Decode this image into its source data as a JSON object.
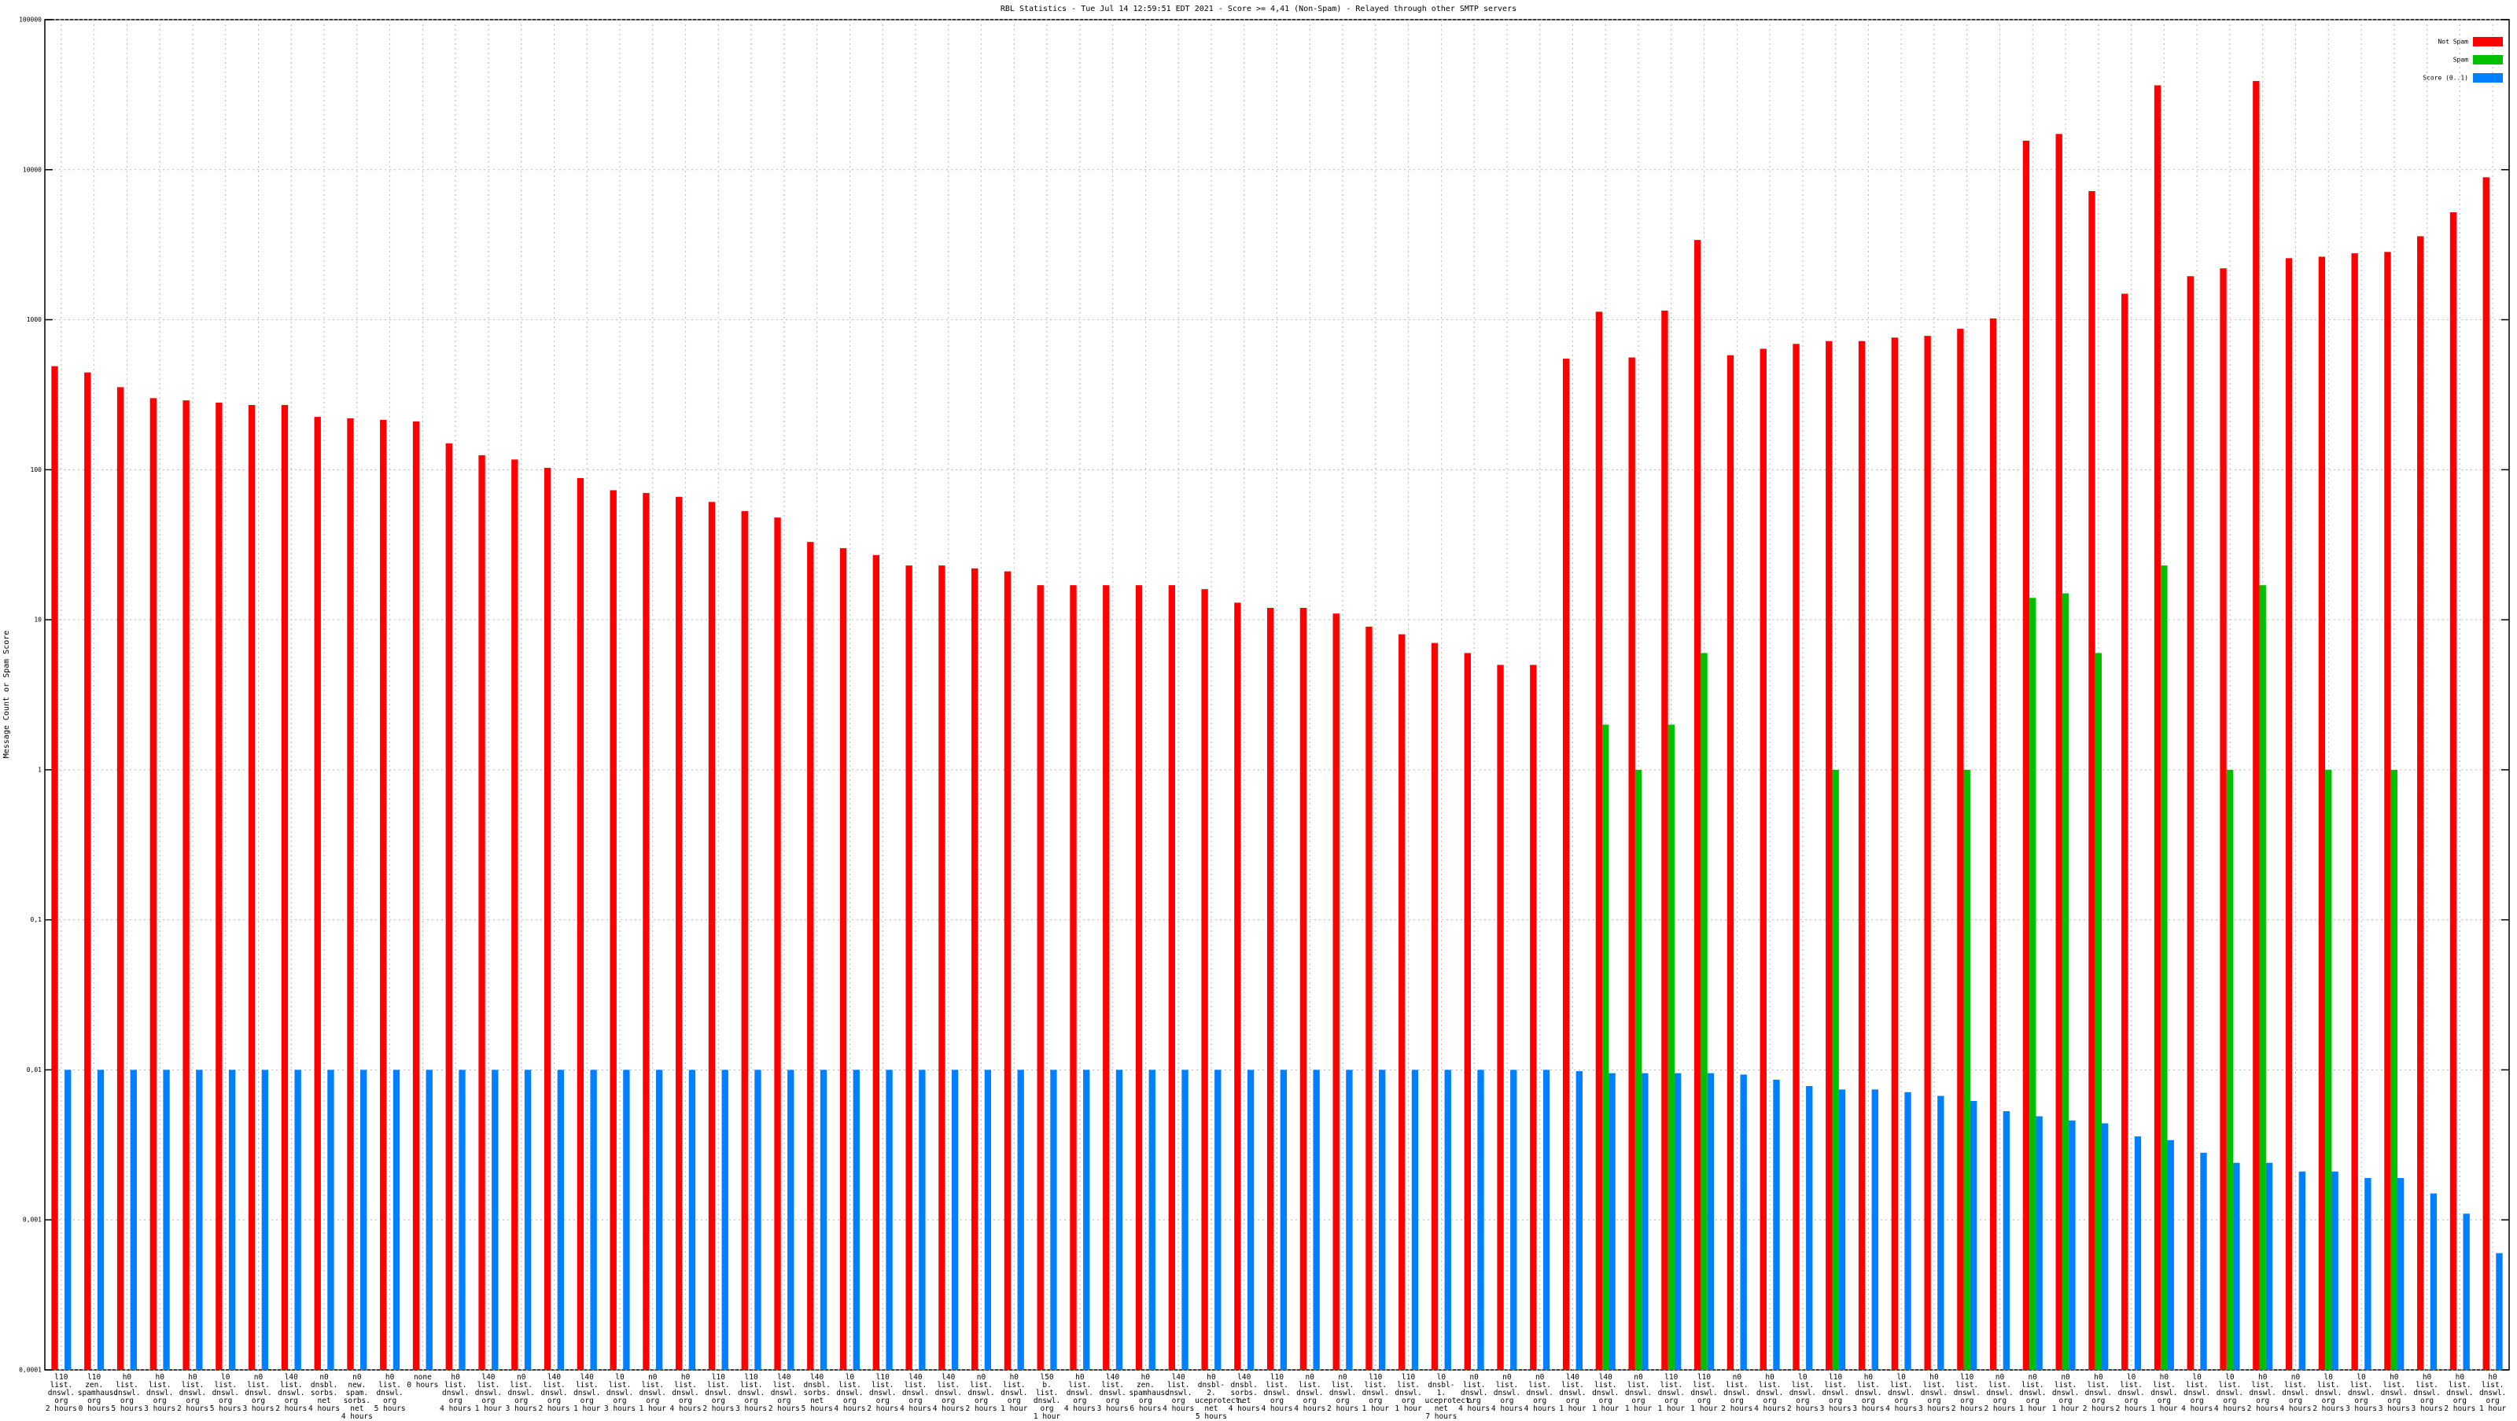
{
  "chart_data": {
    "type": "bar",
    "title": "RBL Statistics - Tue Jul 14 12:59:51 EDT 2021 - Score >= 4,41 (Non-Spam) - Relayed through other SMTP servers",
    "y_label": "Message Count or Spam Score",
    "log_scale": true,
    "grid": true,
    "legend": "upper right",
    "ylim": [
      0.0001,
      100000
    ],
    "yticks": [
      {
        "value": 0.0001,
        "label": "0,0001"
      },
      {
        "value": 0.001,
        "label": "0,001"
      },
      {
        "value": 0.01,
        "label": "0,01"
      },
      {
        "value": 0.1,
        "label": "0,1"
      },
      1,
      10,
      100,
      1000,
      10000,
      100000
    ],
    "categories": [
      "l10\nlist.\ndnswl.\norg\n2 hours",
      "l10\nzen.\nspamhaus.\norg\n0 hours",
      "h0\nlist.\ndnswl.\norg\n5 hours",
      "h0\nlist.\ndnswl.\norg\n3 hours",
      "h0\nlist.\ndnswl.\norg\n2 hours",
      "l0\nlist.\ndnswl.\norg\n5 hours",
      "n0\nlist.\ndnswl.\norg\n3 hours",
      "l40\nlist.\ndnswl.\norg\n2 hours",
      "n0\ndnsbl.\nsorbs.\nnet\n4 hours",
      "n0\nnew.\nspam.\nsorbs.\nnet\n4 hours",
      "h0\nlist.\ndnswl.\norg\n5 hours",
      "none\n0 hours",
      "h0\nlist.\ndnswl.\norg\n4 hours",
      "l40\nlist.\ndnswl.\norg\n1 hour",
      "n0\nlist.\ndnswl.\norg\n3 hours",
      "l40\nlist.\ndnswl.\norg\n2 hours",
      "l40\nlist.\ndnswl.\norg\n1 hour",
      "l0\nlist.\ndnswl.\norg\n3 hours",
      "n0\nlist.\ndnswl.\norg\n1 hour",
      "h0\nlist.\ndnswl.\norg\n4 hours",
      "l10\nlist.\ndnswl.\norg\n2 hours",
      "l10\nlist.\ndnswl.\norg\n3 hours",
      "l40\nlist.\ndnswl.\norg\n2 hours",
      "l40\ndnsbl.\nsorbs.\nnet\n5 hours",
      "l0\nlist.\ndnswl.\norg\n4 hours",
      "l10\nlist.\ndnswl.\norg\n2 hours",
      "l40\nlist.\ndnswl.\norg\n4 hours",
      "l40\nlist.\ndnswl.\norg\n4 hours",
      "n0\nlist.\ndnswl.\norg\n2 hours",
      "h0\nlist.\ndnswl.\norg\n1 hour",
      "l50\nb.\nlist.\ndnswl.\norg\n1 hour",
      "h0\nlist.\ndnswl.\norg\n4 hours",
      "l40\nlist.\ndnswl.\norg\n3 hours",
      "h0\nzen.\nspamhaus.\norg\n6 hours",
      "l40\nlist.\ndnswl.\norg\n4 hours",
      "h0\ndnsbl-2.\nuceprotect.\nnet\n5 hours",
      "l40\ndnsbl.\nsorbs.\nnet\n4 hours",
      "l10\nlist.\ndnswl.\norg\n4 hours",
      "n0\nlist.\ndnswl.\norg\n4 hours",
      "n0\nlist.\ndnswl.\norg\n2 hours",
      "l10\nlist.\ndnswl.\norg\n1 hour",
      "l10\nlist.\ndnswl.\norg\n1 hour",
      "l0\ndnsbl-1.\nuceprotect.\nnet\n7 hours",
      "n0\nlist.\ndnswl.\norg\n4 hours",
      "n0\nlist.\ndnswl.\norg\n4 hours",
      "n0\nlist.\ndnswl.\norg\n4 hours",
      "l40\nlist.\ndnswl.\norg\n1 hour",
      "l40\nlist.\ndnswl.\norg\n1 hour",
      "n0\nlist.\ndnswl.\norg\n1 hour",
      "l10\nlist.\ndnswl.\norg\n1 hour",
      "l10\nlist.\ndnswl.\norg\n1 hour",
      "n0\nlist.\ndnswl.\norg\n2 hours",
      "h0\nlist.\ndnswl.\norg\n4 hours",
      "l0\nlist.\ndnswl.\norg\n2 hours",
      "l10\nlist.\ndnswl.\norg\n3 hours",
      "h0\nlist.\ndnswl.\norg\n3 hours",
      "l0\nlist.\ndnswl.\norg\n4 hours",
      "h0\nlist.\ndnswl.\norg\n3 hours",
      "l10\nlist.\ndnswl.\norg\n2 hours",
      "n0\nlist.\ndnswl.\norg\n2 hours",
      "n0\nlist.\ndnswl.\norg\n1 hour",
      "n0\nlist.\ndnswl.\norg\n1 hour",
      "h0\nlist.\ndnswl.\norg\n2 hours",
      "l0\nlist.\ndnswl.\norg\n2 hours",
      "h0\nlist.\ndnswl.\norg\n1 hour",
      "l0\nlist.\ndnswl.\norg\n4 hours",
      "l0\nlist.\ndnswl.\norg\n4 hours",
      "h0\nlist.\ndnswl.\norg\n2 hours",
      "n0\nlist.\ndnswl.\norg\n4 hours",
      "l0\nlist.\ndnswl.\norg\n2 hours",
      "l0\nlist.\ndnswl.\norg\n3 hours",
      "h0\nlist.\ndnswl.\norg\n3 hours",
      "h0\nlist.\ndnswl.\norg\n3 hours",
      "h0\nlist.\ndnswl.\norg\n2 hours",
      "h0\nlist.\ndnswl.\norg\n1 hour"
    ],
    "series": [
      {
        "name": "Not Spam",
        "color": "#ff0000",
        "values": [
          490,
          445,
          355,
          300,
          290,
          280,
          270,
          270,
          225,
          220,
          215,
          210,
          150,
          125,
          117,
          103,
          88,
          73,
          70,
          66,
          61,
          53,
          48,
          33,
          30,
          27,
          23,
          23,
          22,
          21,
          17,
          17,
          17,
          17,
          17,
          16,
          13,
          12,
          12,
          11,
          9,
          8,
          7,
          6,
          5,
          5,
          550,
          1130,
          560,
          1150,
          3400,
          580,
          640,
          690,
          720,
          720,
          760,
          780,
          870,
          1020,
          15600,
          17300,
          7200,
          1490,
          36500,
          1950,
          2200,
          39000,
          2570,
          2630,
          2770,
          2830,
          3600,
          5200,
          8900
        ]
      },
      {
        "name": "Spam",
        "color": "#00c000",
        "values": [
          null,
          null,
          null,
          null,
          null,
          null,
          null,
          null,
          null,
          null,
          null,
          null,
          null,
          null,
          null,
          null,
          null,
          null,
          null,
          null,
          null,
          null,
          null,
          null,
          null,
          null,
          null,
          null,
          null,
          null,
          null,
          null,
          null,
          null,
          null,
          null,
          null,
          null,
          null,
          null,
          null,
          null,
          null,
          null,
          null,
          null,
          null,
          2,
          1,
          2,
          6,
          null,
          null,
          null,
          1,
          null,
          null,
          null,
          1,
          null,
          14,
          15,
          6,
          null,
          23,
          null,
          1,
          17,
          null,
          1,
          null,
          1,
          null,
          null,
          null
        ]
      },
      {
        "name": "Score (0..1)",
        "color": "#0080ff",
        "values": [
          0.01,
          0.01,
          0.01,
          0.01,
          0.01,
          0.01,
          0.01,
          0.01,
          0.01,
          0.01,
          0.01,
          0.01,
          0.01,
          0.01,
          0.01,
          0.01,
          0.01,
          0.01,
          0.01,
          0.01,
          0.01,
          0.01,
          0.01,
          0.01,
          0.01,
          0.01,
          0.01,
          0.01,
          0.01,
          0.01,
          0.01,
          0.01,
          0.01,
          0.01,
          0.01,
          0.01,
          0.01,
          0.01,
          0.01,
          0.01,
          0.01,
          0.01,
          0.01,
          0.01,
          0.01,
          0.01,
          0.0098,
          0.0095,
          0.0095,
          0.0095,
          0.0095,
          0.0093,
          0.0086,
          0.0078,
          0.0074,
          0.0074,
          0.0071,
          0.0067,
          0.0062,
          0.0053,
          0.0049,
          0.0046,
          0.0044,
          0.0036,
          0.0034,
          0.0028,
          0.0024,
          0.0024,
          0.0021,
          0.0021,
          0.0019,
          0.0019,
          0.0015,
          0.0011,
          0.0006
        ]
      }
    ]
  }
}
